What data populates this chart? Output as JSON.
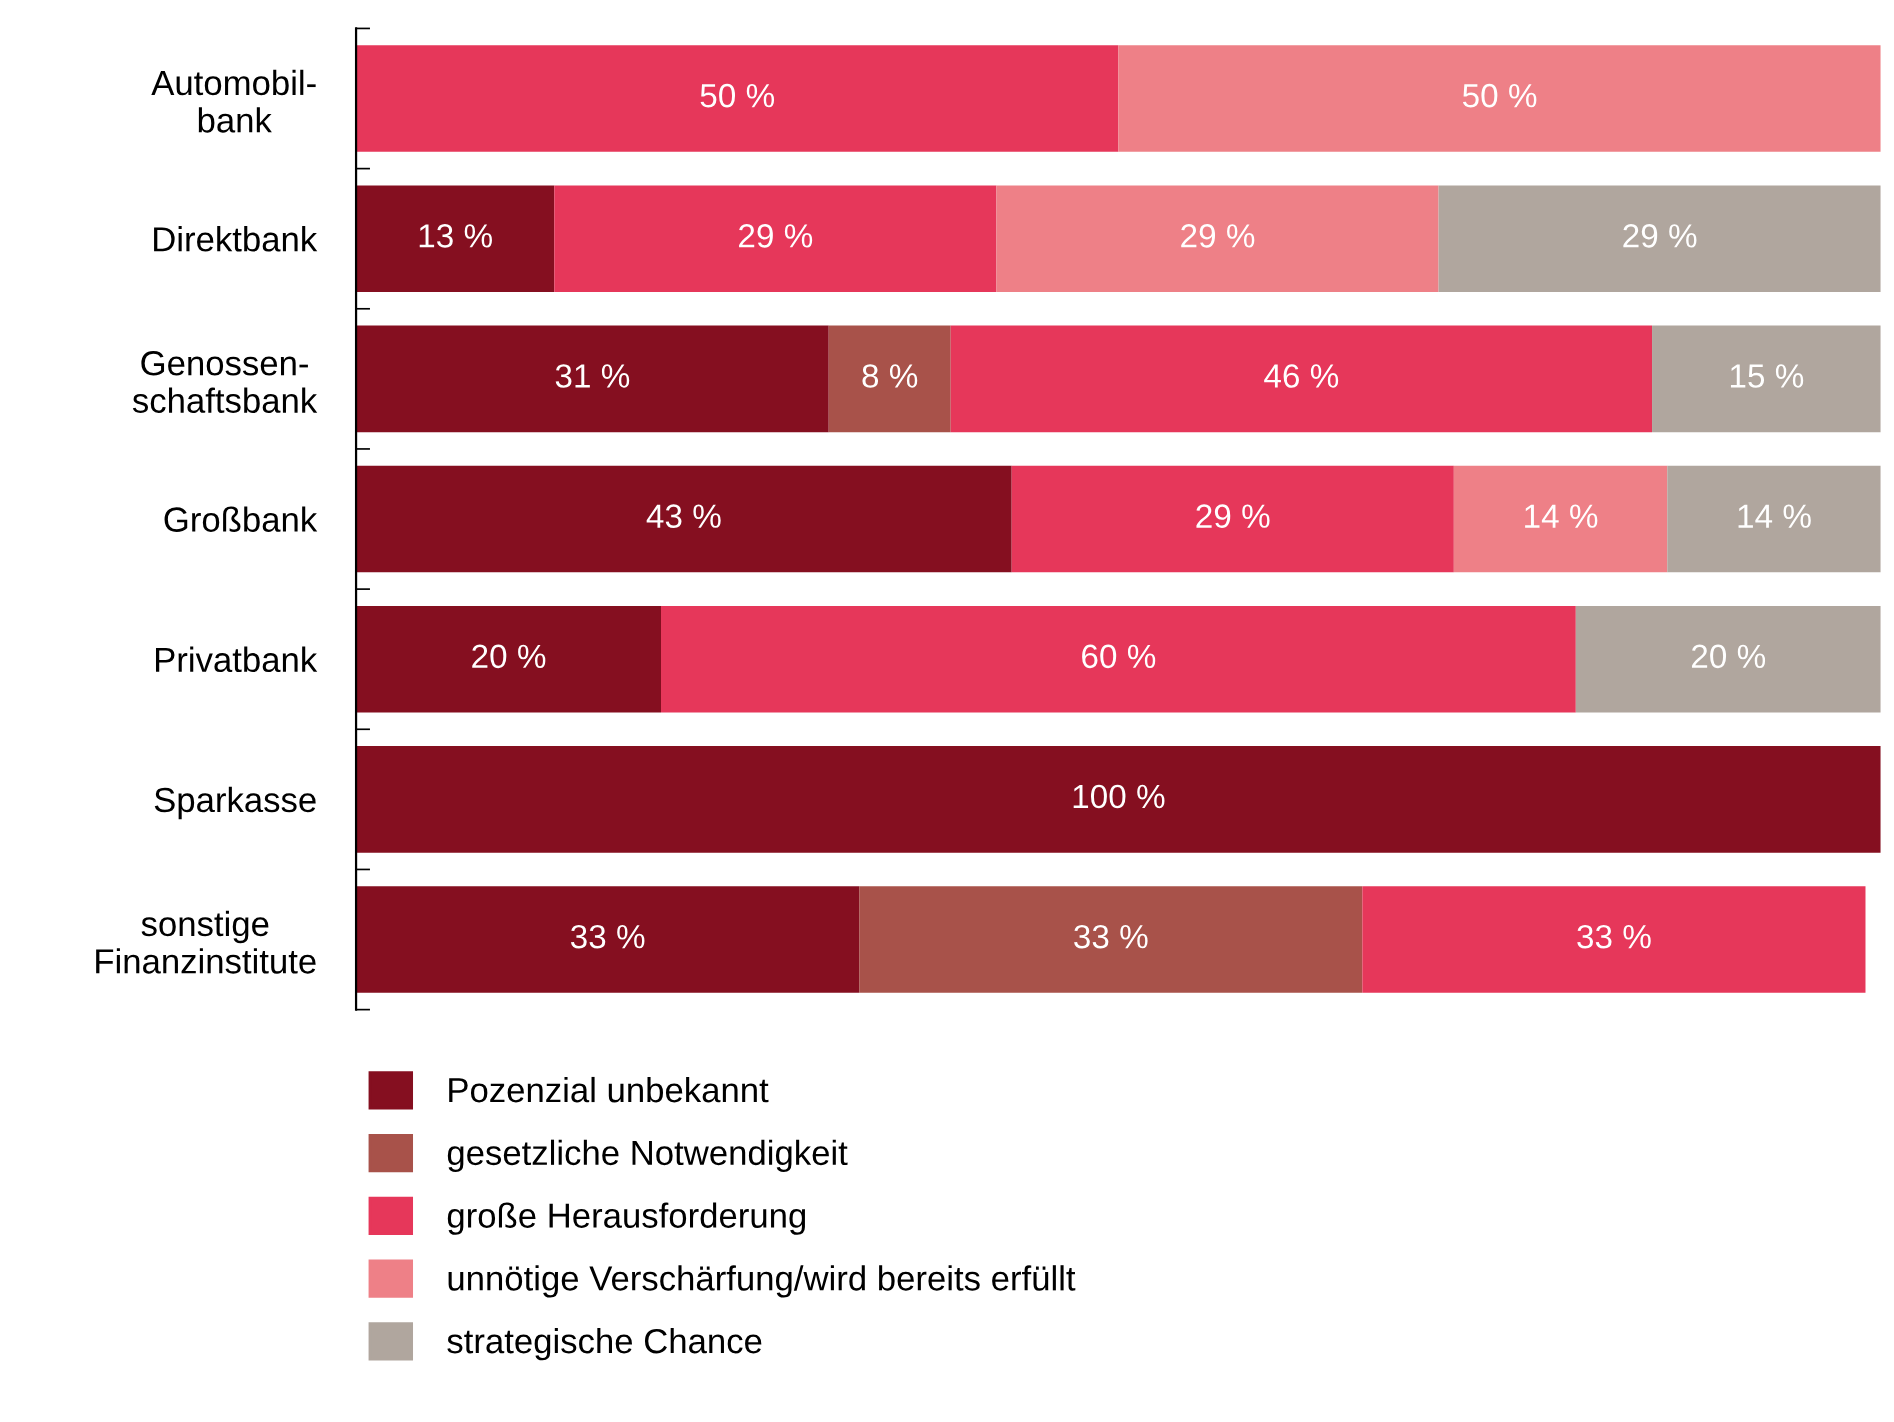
{
  "chart_data": {
    "type": "bar",
    "orientation": "horizontal",
    "stacked": true,
    "xlim": [
      0,
      100
    ],
    "tick_labels": "y",
    "grid": false,
    "legend": "bottom",
    "categories": [
      "Automobil-\nbank",
      "Direktbank",
      "Genossen-\nschaftsbank",
      "Großbank",
      "Privatbank",
      "Sparkasse",
      "sonstige\nFinanzinstitute"
    ],
    "series": [
      {
        "name": "Pozenzial unbekannt",
        "color": "#850f20",
        "values": [
          null,
          13,
          31,
          43,
          20,
          100,
          33
        ],
        "value_labels": [
          null,
          "13 %",
          "31 %",
          "43 %",
          "20 %",
          "100 %",
          "33 %"
        ]
      },
      {
        "name": "gesetzliche Notwendigkeit",
        "color": "#a8524a",
        "values": [
          null,
          null,
          8,
          null,
          null,
          null,
          33
        ],
        "value_labels": [
          null,
          null,
          "8 %",
          null,
          null,
          null,
          "33 %"
        ]
      },
      {
        "name": "große Herausforderung",
        "color": "#e6375a",
        "values": [
          50,
          29,
          46,
          29,
          60,
          null,
          33
        ],
        "value_labels": [
          "50 %",
          "29 %",
          "46 %",
          "29 %",
          "60 %",
          null,
          "33 %"
        ]
      },
      {
        "name": "unnötige Verschärfung/wird bereits erfüllt",
        "color": "#ee8087",
        "values": [
          50,
          29,
          null,
          14,
          null,
          null,
          null
        ],
        "value_labels": [
          "50 %",
          "29 %",
          null,
          "14 %",
          null,
          null,
          null
        ]
      },
      {
        "name": "strategische Chance",
        "color": "#b0a69e",
        "values": [
          null,
          29,
          15,
          14,
          20,
          null,
          null
        ],
        "value_labels": [
          null,
          "29 %",
          "15 %",
          "14 %",
          "20 %",
          null,
          null
        ]
      }
    ]
  }
}
